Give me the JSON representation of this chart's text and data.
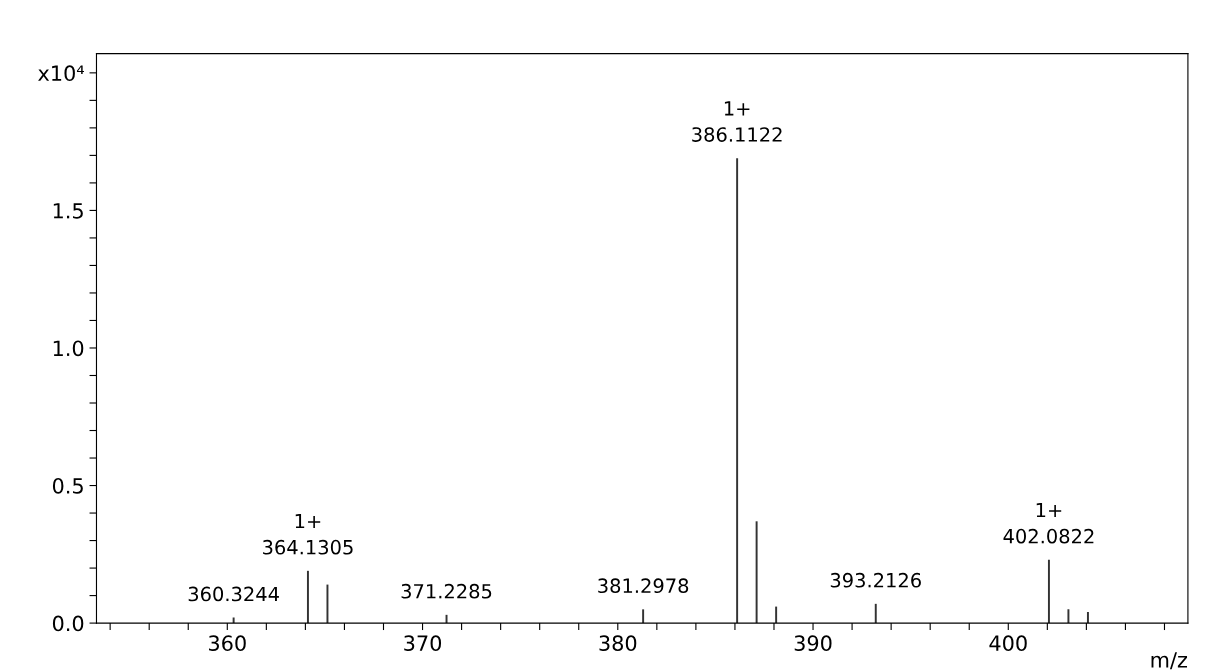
{
  "chart_data": {
    "type": "bar",
    "xlabel": "m/z",
    "color": "#333333",
    "x": [
      360.3244,
      364.1305,
      365.13,
      371.2285,
      381.2978,
      386.1122,
      387.11,
      388.11,
      393.2126,
      402.0822,
      403.08,
      404.08
    ],
    "values": [
      0.02,
      0.19,
      0.14,
      0.03,
      0.05,
      1.69,
      0.37,
      0.06,
      0.07,
      0.23,
      0.05,
      0.04
    ],
    "annotations": [
      {
        "text": "360.3244",
        "x": 360.3244,
        "y": 0.02
      },
      {
        "text": "1+\n364.1305",
        "x": 364.1305,
        "y": 0.19
      },
      {
        "text": "371.2285",
        "x": 371.2285,
        "y": 0.03
      },
      {
        "text": "381.2978",
        "x": 381.2978,
        "y": 0.05
      },
      {
        "text": "1+\n386.1122",
        "x": 386.1122,
        "y": 1.69
      },
      {
        "text": "393.2126",
        "x": 393.2126,
        "y": 0.07
      },
      {
        "text": "1+\n402.0822",
        "x": 402.0822,
        "y": 0.23
      }
    ],
    "xlim": [
      353.3,
      409.2
    ],
    "xticks": [
      {
        "value": 354,
        "label": null
      },
      {
        "value": 356,
        "label": null
      },
      {
        "value": 358,
        "label": null
      },
      360,
      {
        "value": 362,
        "label": null
      },
      {
        "value": 364,
        "label": null
      },
      {
        "value": 366,
        "label": null
      },
      {
        "value": 368,
        "label": null
      },
      370,
      {
        "value": 372,
        "label": null
      },
      {
        "value": 374,
        "label": null
      },
      {
        "value": 376,
        "label": null
      },
      {
        "value": 378,
        "label": null
      },
      380,
      {
        "value": 382,
        "label": null
      },
      {
        "value": 384,
        "label": null
      },
      {
        "value": 386,
        "label": null
      },
      {
        "value": 388,
        "label": null
      },
      390,
      {
        "value": 392,
        "label": null
      },
      {
        "value": 394,
        "label": null
      },
      {
        "value": 396,
        "label": null
      },
      {
        "value": 398,
        "label": null
      },
      400,
      {
        "value": 402,
        "label": null
      },
      {
        "value": 404,
        "label": null
      },
      {
        "value": 406,
        "label": null
      },
      {
        "value": 408,
        "label": null
      }
    ],
    "ylim": [
      0,
      2.07
    ],
    "yticks": [
      {
        "value": 0,
        "label": "0.0"
      },
      {
        "value": 0.1,
        "label": null
      },
      {
        "value": 0.2,
        "label": null
      },
      {
        "value": 0.3,
        "label": null
      },
      {
        "value": 0.4,
        "label": null
      },
      0.5,
      {
        "value": 0.6,
        "label": null
      },
      {
        "value": 0.7,
        "label": null
      },
      {
        "value": 0.8,
        "label": null
      },
      {
        "value": 0.9,
        "label": null
      },
      {
        "value": 1.0,
        "label": "1.0"
      },
      {
        "value": 1.1,
        "label": null
      },
      {
        "value": 1.2,
        "label": null
      },
      {
        "value": 1.3,
        "label": null
      },
      {
        "value": 1.4,
        "label": null
      },
      1.5,
      {
        "value": 1.6,
        "label": null
      },
      {
        "value": 1.7,
        "label": null
      },
      {
        "value": 1.8,
        "label": null
      },
      {
        "value": 1.9,
        "label": null
      },
      {
        "value": 2.0,
        "label": "x10⁴"
      }
    ],
    "grid": false
  }
}
